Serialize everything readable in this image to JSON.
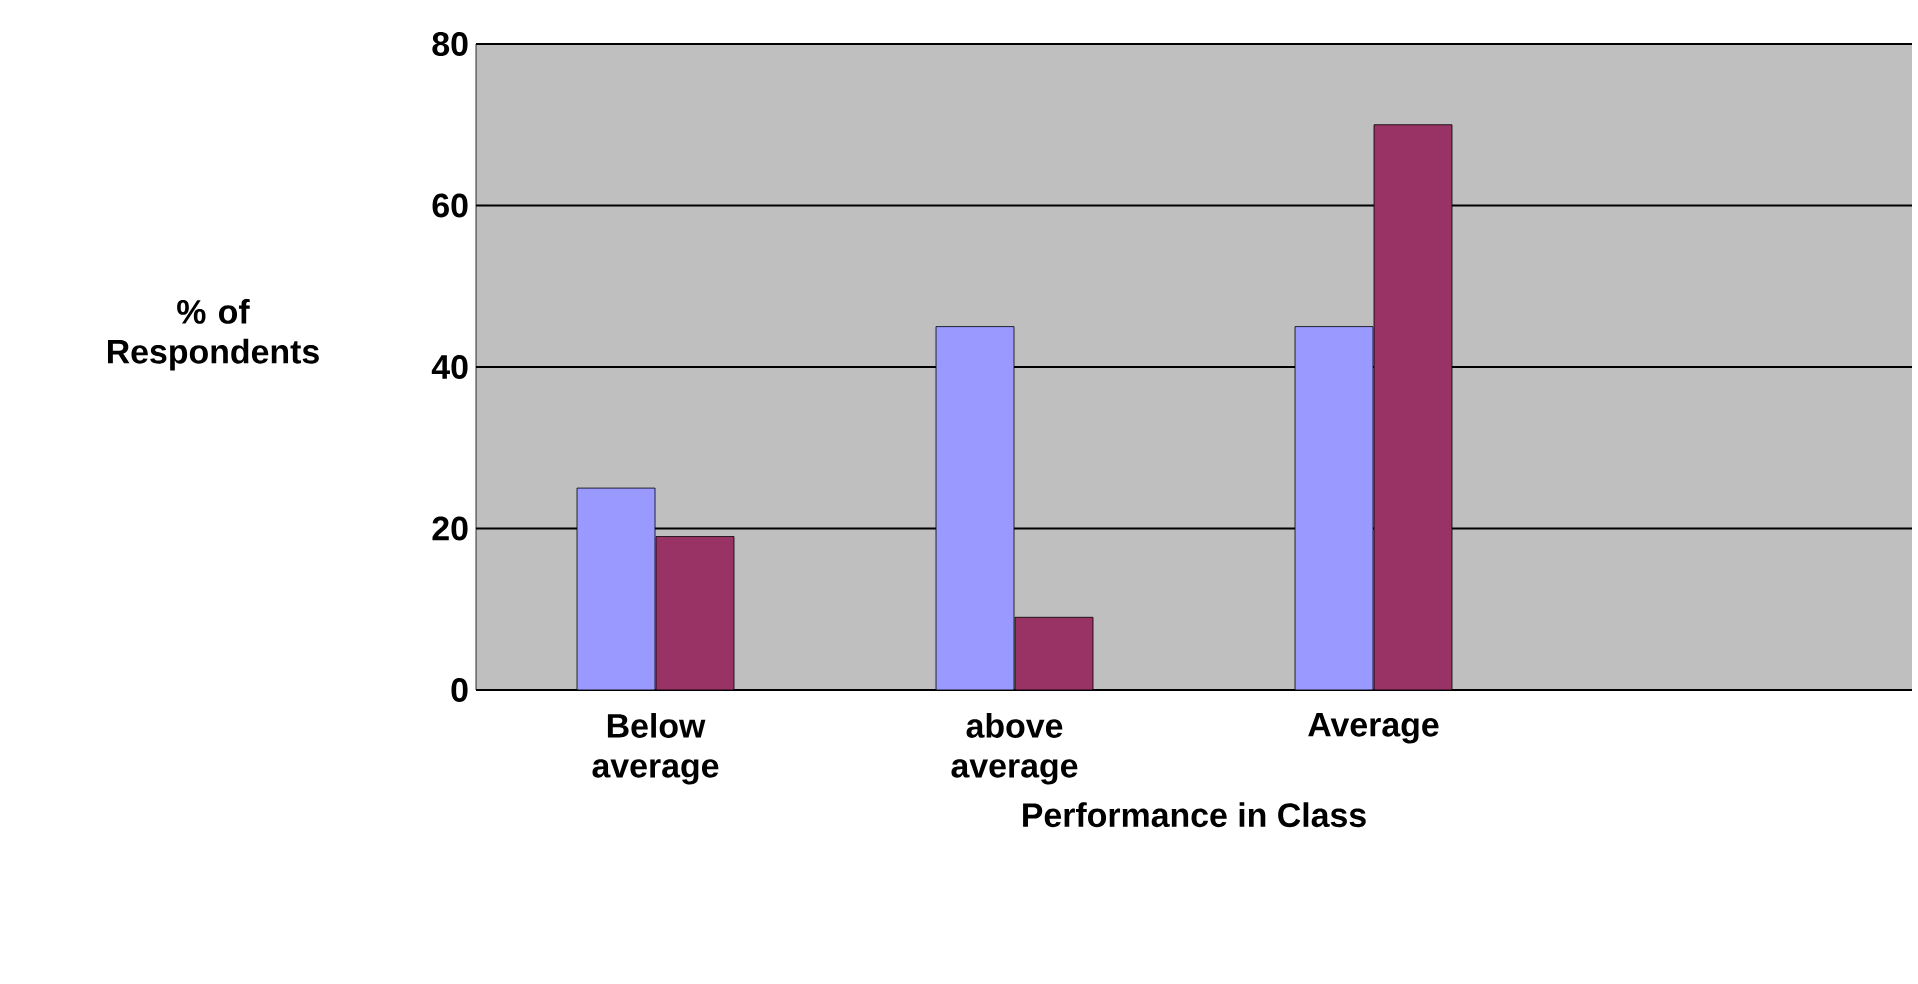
{
  "chart_data": {
    "type": "bar",
    "xlabel": "Performance in Class",
    "ylabel": "% of Respondents",
    "categories": [
      "Below average",
      "above average",
      "Average",
      null
    ],
    "series": [
      {
        "color": "#9999ff",
        "values": [
          25,
          45,
          45,
          null
        ]
      },
      {
        "color": "#993366",
        "values": [
          19,
          9,
          70,
          null
        ]
      }
    ],
    "ylim": [
      0,
      80
    ],
    "yticks": [
      0,
      20,
      40,
      60,
      80
    ],
    "grid": "y"
  }
}
